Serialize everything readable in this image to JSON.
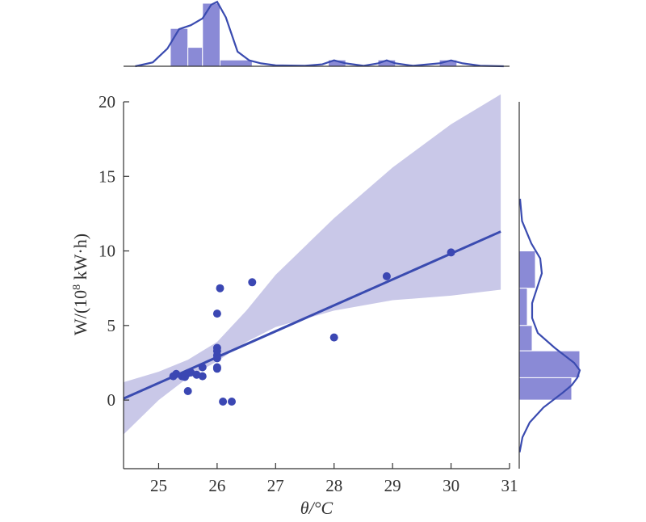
{
  "chart_data": {
    "type": "scatter",
    "xlabel": "θ/°C",
    "ylabel_main": "W/(10",
    "ylabel_sup": "8",
    "ylabel_tail": " kW·h)",
    "xlim": [
      24.4,
      31.0
    ],
    "ylim": [
      -4.6,
      20.0
    ],
    "x_ticks": [
      25,
      26,
      27,
      28,
      29,
      30,
      31
    ],
    "y_ticks": [
      0,
      5,
      10,
      15,
      20
    ],
    "grid": false,
    "colors": {
      "points": "#3b47b3",
      "regression": "#3a4bb0",
      "band": "#c9c8e8",
      "hist": "#8a8ad6",
      "axis": "#333333"
    },
    "points": [
      {
        "x": 25.25,
        "y": 1.6
      },
      {
        "x": 25.3,
        "y": 1.75
      },
      {
        "x": 25.4,
        "y": 1.6
      },
      {
        "x": 25.45,
        "y": 1.55
      },
      {
        "x": 25.5,
        "y": 1.8
      },
      {
        "x": 25.55,
        "y": 1.85
      },
      {
        "x": 25.5,
        "y": 0.6
      },
      {
        "x": 25.65,
        "y": 1.7
      },
      {
        "x": 25.75,
        "y": 2.2
      },
      {
        "x": 25.75,
        "y": 1.6
      },
      {
        "x": 26.0,
        "y": 2.2
      },
      {
        "x": 26.0,
        "y": 2.1
      },
      {
        "x": 26.0,
        "y": 2.8
      },
      {
        "x": 26.0,
        "y": 3.0
      },
      {
        "x": 26.0,
        "y": 3.3
      },
      {
        "x": 26.0,
        "y": 3.5
      },
      {
        "x": 26.0,
        "y": 5.8
      },
      {
        "x": 26.05,
        "y": 7.5
      },
      {
        "x": 26.1,
        "y": -0.1
      },
      {
        "x": 26.25,
        "y": -0.1
      },
      {
        "x": 26.6,
        "y": 7.9
      },
      {
        "x": 28.0,
        "y": 4.2
      },
      {
        "x": 28.9,
        "y": 8.3
      },
      {
        "x": 30.0,
        "y": 9.9
      }
    ],
    "regression": {
      "x": [
        24.4,
        30.85
      ],
      "y": [
        0.1,
        11.3
      ]
    },
    "confidence_band": {
      "x": [
        24.4,
        25.0,
        25.5,
        26.0,
        26.5,
        27.0,
        28.0,
        29.0,
        30.0,
        30.85
      ],
      "upper": [
        1.2,
        1.9,
        2.7,
        3.9,
        6.0,
        8.4,
        12.2,
        15.6,
        18.5,
        20.5
      ],
      "lower": [
        -2.3,
        0.0,
        1.5,
        2.6,
        3.9,
        4.9,
        6.0,
        6.7,
        7.0,
        7.4
      ]
    },
    "top_hist": {
      "bins": [
        [
          25.2,
          25.5,
          6
        ],
        [
          25.5,
          25.75,
          3
        ],
        [
          25.75,
          26.05,
          10
        ],
        [
          26.05,
          26.6,
          1
        ],
        [
          27.9,
          28.2,
          1
        ],
        [
          28.75,
          29.05,
          1
        ],
        [
          29.8,
          30.1,
          1
        ]
      ],
      "kde": {
        "x": [
          24.6,
          24.9,
          25.15,
          25.35,
          25.55,
          25.75,
          25.9,
          26.0,
          26.15,
          26.35,
          26.55,
          26.75,
          27.0,
          27.5,
          27.8,
          28.0,
          28.2,
          28.5,
          28.75,
          28.9,
          29.05,
          29.35,
          29.8,
          30.0,
          30.2,
          30.5,
          30.9
        ],
        "y": [
          0,
          0.4,
          1.8,
          3.8,
          4.2,
          4.9,
          6.3,
          6.6,
          5.0,
          1.5,
          0.6,
          0.3,
          0.1,
          0.05,
          0.2,
          0.6,
          0.3,
          0.05,
          0.3,
          0.6,
          0.3,
          0.05,
          0.3,
          0.6,
          0.3,
          0.05,
          0
        ]
      }
    },
    "right_hist": {
      "bins": [
        [
          7.5,
          10.0,
          2
        ],
        [
          5.0,
          7.5,
          1
        ],
        [
          3.3,
          5.0,
          1.6
        ],
        [
          1.5,
          3.3,
          7.5
        ],
        [
          0.0,
          1.5,
          6.5
        ]
      ],
      "kde": {
        "y": [
          13.5,
          12.0,
          10.5,
          9.5,
          8.5,
          7.5,
          6.5,
          5.5,
          4.5,
          3.5,
          2.5,
          2.0,
          1.5,
          1.0,
          0.5,
          -0.5,
          -1.5,
          -2.5,
          -3.5
        ],
        "x": [
          0.1,
          0.35,
          1.5,
          2.6,
          2.8,
          2.2,
          1.6,
          1.6,
          2.3,
          4.4,
          6.8,
          7.5,
          7.2,
          6.5,
          5.4,
          3.0,
          1.3,
          0.4,
          0.05
        ]
      }
    }
  }
}
